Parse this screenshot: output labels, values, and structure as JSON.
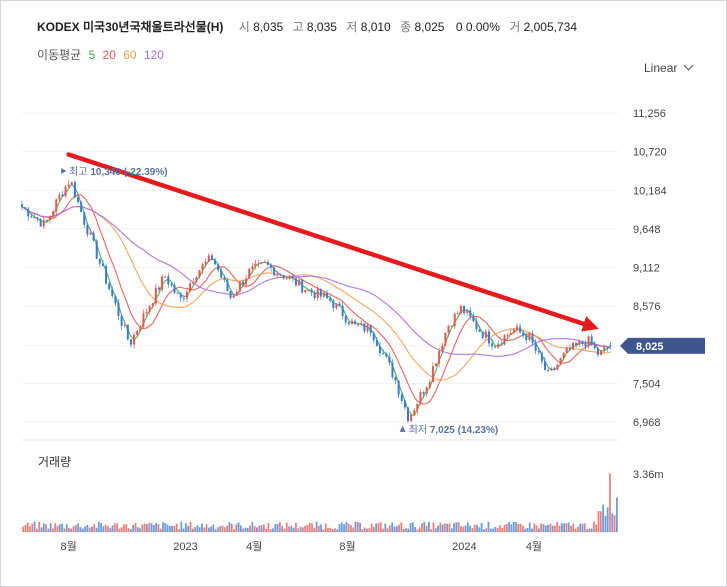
{
  "header": {
    "name": "KODEX 미국30년국채울트라선물(H)",
    "open_label": "시",
    "open": "8,035",
    "high_label": "고",
    "high": "8,035",
    "low_label": "저",
    "low": "8,010",
    "close_label": "종",
    "close": "8,025",
    "change": "0 0.00%",
    "volume_label": "거",
    "volume": "2,005,734"
  },
  "ma_legend": {
    "title": "이동평균",
    "periods": [
      "5",
      "20",
      "60",
      "120"
    ],
    "colors": [
      "#3fae45",
      "#e8564f",
      "#f0a050",
      "#a66ce4"
    ]
  },
  "scale_select": {
    "value": "Linear"
  },
  "chart_data": {
    "type": "candlestick",
    "y_ticks": [
      "11,256",
      "10,720",
      "10,184",
      "9,648",
      "9,112",
      "8,576",
      "7,504",
      "6,968"
    ],
    "y_tick_values": [
      11256,
      10720,
      10184,
      9648,
      9112,
      8576,
      7504,
      6968
    ],
    "current_price": {
      "label": "8,025",
      "value": 8025
    },
    "x_ticks": [
      "8월",
      "2023",
      "4월",
      "8월",
      "2024",
      "4월"
    ],
    "ylim": [
      6700,
      11600
    ],
    "price_series": [
      {
        "date": "2022-06",
        "value": 9950
      },
      {
        "date": "2022-07",
        "value": 9700
      },
      {
        "date": "2022-07-20",
        "value": 10100
      },
      {
        "date": "2022-08-03",
        "value": 10340
      },
      {
        "date": "2022-08-20",
        "value": 9800
      },
      {
        "date": "2022-09-10",
        "value": 9200
      },
      {
        "date": "2022-10-20",
        "value": 8050
      },
      {
        "date": "2022-11-10",
        "value": 8500
      },
      {
        "date": "2022-12-05",
        "value": 9000
      },
      {
        "date": "2022-12-25",
        "value": 8650
      },
      {
        "date": "2023-01-15",
        "value": 9050
      },
      {
        "date": "2023-02-05",
        "value": 9250
      },
      {
        "date": "2023-03-01",
        "value": 8700
      },
      {
        "date": "2023-03-25",
        "value": 9050
      },
      {
        "date": "2023-04-15",
        "value": 9150
      },
      {
        "date": "2023-05-10",
        "value": 9000
      },
      {
        "date": "2023-06-10",
        "value": 8800
      },
      {
        "date": "2023-07-10",
        "value": 8650
      },
      {
        "date": "2023-08-10",
        "value": 8300
      },
      {
        "date": "2023-09-01",
        "value": 8250
      },
      {
        "date": "2023-10-01",
        "value": 7600
      },
      {
        "date": "2023-10-20",
        "value": 7025
      },
      {
        "date": "2023-11-15",
        "value": 7550
      },
      {
        "date": "2023-12-10",
        "value": 8300
      },
      {
        "date": "2023-12-28",
        "value": 8550
      },
      {
        "date": "2024-01-20",
        "value": 8250
      },
      {
        "date": "2024-02-10",
        "value": 8050
      },
      {
        "date": "2024-03-05",
        "value": 8250
      },
      {
        "date": "2024-03-25",
        "value": 8150
      },
      {
        "date": "2024-04-20",
        "value": 7600
      },
      {
        "date": "2024-05-15",
        "value": 7950
      },
      {
        "date": "2024-06-10",
        "value": 8100
      },
      {
        "date": "2024-06-25",
        "value": 7900
      },
      {
        "date": "2024-07-10",
        "value": 8025
      }
    ],
    "annotations": [
      {
        "text": "최고",
        "value_text": "10,340 (-22.39%)",
        "date": "2022-08-03",
        "value": 10340
      },
      {
        "text": "최저",
        "value_text": "7,025 (14.23%)",
        "date": "2023-10-20",
        "value": 7025
      }
    ],
    "trend_arrow": {
      "from": {
        "date": "2022-08-01",
        "value": 10680
      },
      "to": {
        "date": "2024-06-25",
        "value": 8260
      },
      "color": "#e8191c"
    },
    "volume": {
      "title": "거래량",
      "tick": "3.36m",
      "tick_value": 3360000,
      "last_value": 2005734,
      "spike_value": 3400000
    }
  }
}
